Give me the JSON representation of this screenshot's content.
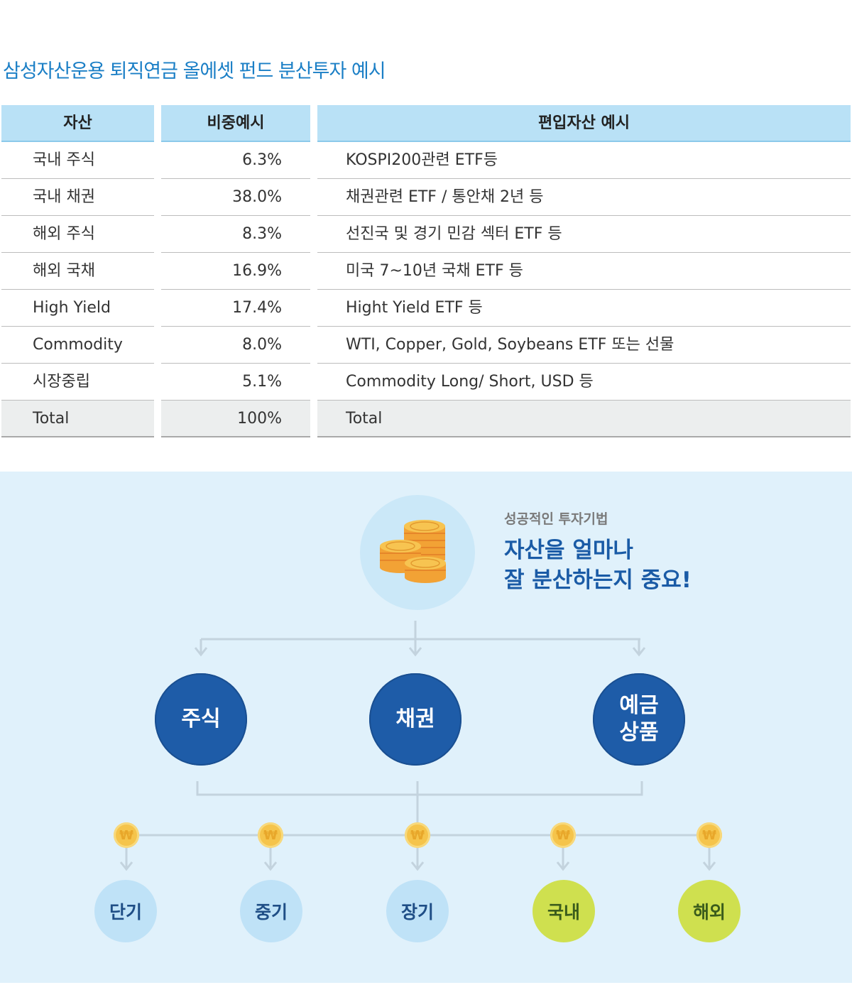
{
  "title": "삼성자산운용 퇴직연금 올에셋 펀드 분산투자 예시",
  "table": {
    "headers": [
      "자산",
      "비중예시",
      "편입자산 예시"
    ],
    "rows": [
      {
        "asset": "국내 주식",
        "weight": "6.3%",
        "example": "KOSPI200관련 ETF등"
      },
      {
        "asset": "국내 채권",
        "weight": "38.0%",
        "example": "채권관련 ETF / 통안채 2년 등"
      },
      {
        "asset": "해외 주식",
        "weight": "8.3%",
        "example": "선진국 및 경기 민감 섹터 ETF 등"
      },
      {
        "asset": "해외 국채",
        "weight": "16.9%",
        "example": "미국 7~10년 국채 ETF 등"
      },
      {
        "asset": "High Yield",
        "weight": "17.4%",
        "example": "Hight Yield ETF 등"
      },
      {
        "asset": "Commodity",
        "weight": "8.0%",
        "example": "WTI, Copper, Gold, Soybeans ETF 또는 선물"
      },
      {
        "asset": "시장중립",
        "weight": "5.1%",
        "example": "Commodity Long/ Short, USD 등"
      }
    ],
    "total": {
      "asset": "Total",
      "weight": "100%",
      "example": "Total"
    }
  },
  "diagram": {
    "subtitle": "성공적인 투자기법",
    "headline_1": "자산을 얼마나",
    "headline_2": "잘 분산하는지 중요!",
    "categories": [
      "주식",
      "채권",
      "예금\n상품"
    ],
    "sub_items": [
      "단기",
      "중기",
      "장기",
      "국내",
      "해외"
    ],
    "won_symbol": "₩",
    "colors": {
      "title": "#1b7fc6",
      "big_circle": "#1e5ca8",
      "blue_circle": "#bfe2f7",
      "green_circle": "#cfe04f",
      "coin": "#f5c44b"
    }
  }
}
